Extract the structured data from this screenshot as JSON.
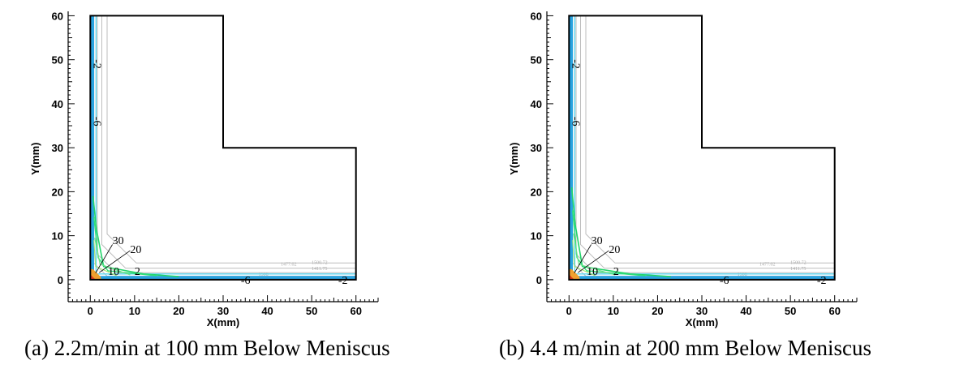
{
  "chart_data": [
    {
      "type": "contour",
      "caption": "(a) 2.2m/min at 100 mm Below Meniscus",
      "xlabel": "X(mm)",
      "ylabel": "Y(mm)",
      "xlim": [
        -5,
        65
      ],
      "ylim": [
        -5,
        61
      ],
      "xticks": [
        0,
        10,
        20,
        30,
        40,
        50,
        60
      ],
      "yticks": [
        0,
        10,
        20,
        30,
        40,
        50,
        60
      ],
      "domain_outline": [
        [
          0,
          0
        ],
        [
          60,
          0
        ],
        [
          60,
          30
        ],
        [
          30,
          30
        ],
        [
          30,
          60
        ],
        [
          0,
          60
        ]
      ],
      "contour_labels": [
        {
          "text": "30",
          "x": 5,
          "y": 9
        },
        {
          "text": "20",
          "x": 9,
          "y": 7
        },
        {
          "text": "10",
          "x": 4,
          "y": 2
        },
        {
          "text": "2",
          "x": 10,
          "y": 2
        },
        {
          "text": "-6",
          "x": 34,
          "y": 0
        },
        {
          "text": "-2",
          "x": 56,
          "y": 0
        },
        {
          "text": "-2",
          "x": 0,
          "y": 49
        },
        {
          "text": "-6",
          "x": 0,
          "y": 36
        }
      ],
      "isotherm_labels": [
        "1477.02",
        "1500.72",
        "1411.75",
        "1508"
      ],
      "peak_green_extent": {
        "along_x": 20,
        "along_y": 19
      }
    },
    {
      "type": "contour",
      "caption": "(b) 4.4 m/min at 200 mm Below Meniscus",
      "xlabel": "X(mm)",
      "ylabel": "Y(mm)",
      "xlim": [
        -5,
        65
      ],
      "ylim": [
        -5,
        61
      ],
      "xticks": [
        0,
        10,
        20,
        30,
        40,
        50,
        60
      ],
      "yticks": [
        0,
        10,
        20,
        30,
        40,
        50,
        60
      ],
      "domain_outline": [
        [
          0,
          0
        ],
        [
          60,
          0
        ],
        [
          60,
          30
        ],
        [
          30,
          30
        ],
        [
          30,
          60
        ],
        [
          0,
          60
        ]
      ],
      "contour_labels": [
        {
          "text": "30",
          "x": 5,
          "y": 9
        },
        {
          "text": "20",
          "x": 9,
          "y": 7
        },
        {
          "text": "10",
          "x": 4,
          "y": 2
        },
        {
          "text": "2",
          "x": 10,
          "y": 2
        },
        {
          "text": "-6",
          "x": 34,
          "y": 0
        },
        {
          "text": "-2",
          "x": 56,
          "y": 0
        },
        {
          "text": "-2",
          "x": 0,
          "y": 49
        },
        {
          "text": "-6",
          "x": 0,
          "y": 36
        }
      ],
      "isotherm_labels": [
        "1477.02",
        "1500.72",
        "1411.75",
        "1508"
      ],
      "peak_green_extent": {
        "along_x": 23,
        "along_y": 21
      }
    }
  ]
}
